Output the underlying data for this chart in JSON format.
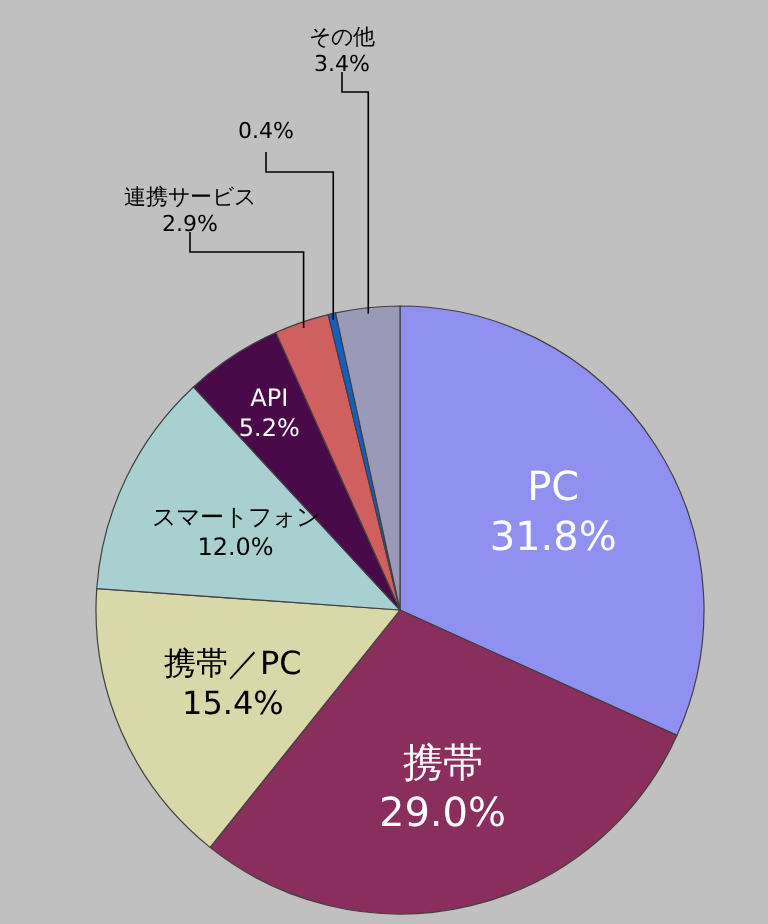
{
  "chart_data": {
    "type": "pie",
    "categories": [
      "PC",
      "携帯",
      "携帯／PC",
      "スマートフォン",
      "API",
      "連携サービス",
      null,
      "その他"
    ],
    "values": [
      31.8,
      29.0,
      15.4,
      12.0,
      5.2,
      2.9,
      0.4,
      3.4
    ],
    "value_labels": [
      "31.8%",
      "29.0%",
      "15.4%",
      "12.0%",
      "5.2%",
      "2.9%",
      "0.4%",
      "3.4%"
    ],
    "colors": [
      "#9090f0",
      "#8a2e5e",
      "#d8d8a8",
      "#a8d0d0",
      "#4a0a4a",
      "#d06060",
      "#1060c0",
      "#9a9ab8"
    ]
  }
}
